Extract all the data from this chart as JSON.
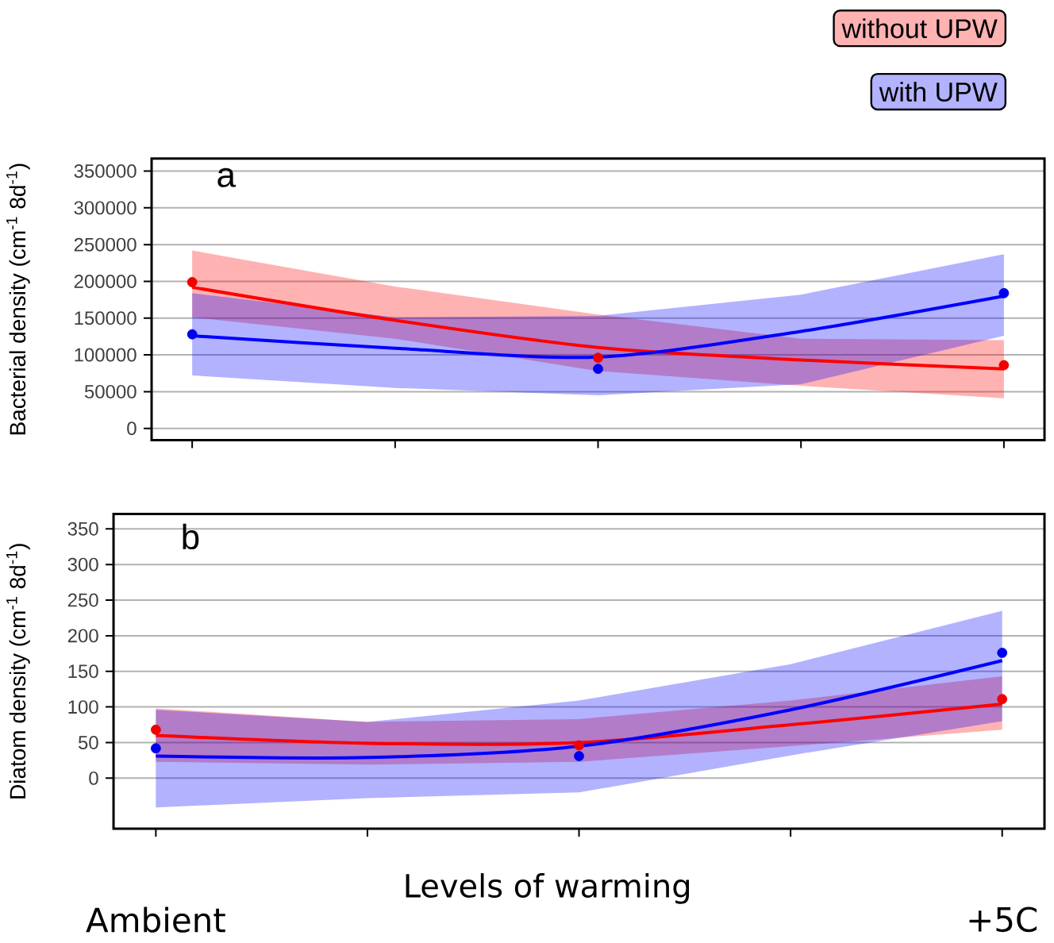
{
  "chart_data": [
    {
      "type": "line",
      "ylabel": "Bacterial density (cm$^{-1}$ 8d$^{-1}$)",
      "annotations": [
        "a"
      ],
      "legend": "top right",
      "grid": "y",
      "tick_labels": "y",
      "categories": [
        null,
        null,
        null,
        null,
        null
      ],
      "ylim": [
        -16000,
        367000
      ],
      "yticks": [
        0,
        50000,
        100000,
        150000,
        200000,
        250000,
        300000,
        350000
      ],
      "series": [
        {
          "name": "without UPW",
          "color": "#ff0000",
          "values": [
            192000,
            147000,
            110000,
            93000,
            81000
          ],
          "lower": [
            151000,
            122000,
            78000,
            58000,
            41000
          ],
          "upper": [
            242000,
            193000,
            155000,
            122000,
            120000
          ]
        },
        {
          "name": "with UPW",
          "color": "#0000ff",
          "values": [
            126000,
            109000,
            97000,
            132000,
            180000
          ],
          "lower": [
            72000,
            55000,
            45000,
            60000,
            126000
          ],
          "upper": [
            184000,
            151000,
            153000,
            182000,
            237000
          ]
        },
        {
          "type": "scatter",
          "color": "#f00000",
          "values": [
            199000,
            null,
            96000,
            null,
            86000
          ]
        },
        {
          "type": "scatter",
          "color": "#0000f0",
          "values": [
            128000,
            null,
            81000,
            null,
            184000
          ]
        }
      ]
    },
    {
      "type": "line",
      "ylabel": "Diatom density (cm$^{-1}$ 8d$^{-1}$)",
      "xlabel": "Levels of warming",
      "annotations": [
        "b"
      ],
      "grid": "y",
      "categories": [
        "Ambient",
        null,
        null,
        null,
        "+5C"
      ],
      "ylim": [
        -71,
        371
      ],
      "yticks": [
        0,
        50,
        100,
        150,
        200,
        250,
        300,
        350
      ],
      "series": [
        {
          "color": "#ff0000",
          "values": [
            60,
            49,
            50,
            75,
            104
          ],
          "lower": [
            23,
            19,
            23,
            45,
            68
          ],
          "upper": [
            98,
            79,
            83,
            109,
            143
          ]
        },
        {
          "color": "#0000ff",
          "values": [
            31,
            29,
            45,
            96,
            165
          ],
          "lower": [
            -41,
            -28,
            -20,
            32,
            80
          ],
          "upper": [
            96,
            79,
            109,
            160,
            235
          ]
        },
        {
          "type": "scatter",
          "color": "#f00000",
          "values": [
            68,
            null,
            46,
            null,
            111
          ]
        },
        {
          "type": "scatter",
          "color": "#0000f0",
          "values": [
            42,
            null,
            31,
            null,
            176
          ]
        }
      ]
    }
  ]
}
